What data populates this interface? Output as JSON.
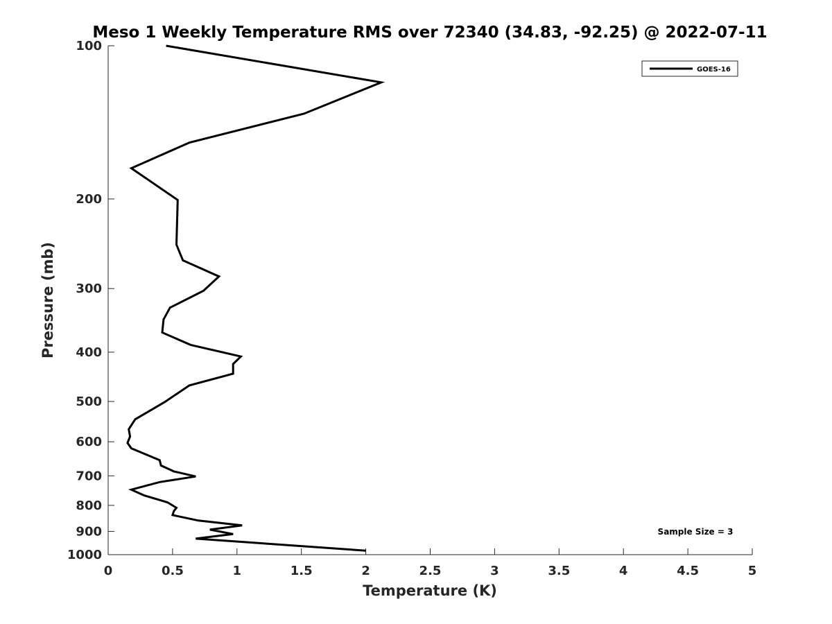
{
  "chart_data": {
    "type": "line",
    "title": "Meso 1 Weekly Temperature RMS over 72340 (34.83, -92.25) @ 2022-07-11",
    "xlabel": "Temperature (K)",
    "ylabel": "Pressure (mb)",
    "xlim": [
      0,
      5
    ],
    "ylim": [
      100,
      1000
    ],
    "yscale": "log",
    "y_reversed": true,
    "x_ticks": [
      "0",
      "0.5",
      "1",
      "1.5",
      "2",
      "2.5",
      "3",
      "3.5",
      "4",
      "4.5",
      "5"
    ],
    "y_ticks": [
      "100",
      "200",
      "300",
      "400",
      "500",
      "600",
      "700",
      "800",
      "900",
      "1000"
    ],
    "grid": false,
    "legend": {
      "position": "top-right",
      "entries": [
        "GOES-16"
      ]
    },
    "annotation": "Sample Size = 3",
    "series": [
      {
        "name": "GOES-16",
        "color": "#000000",
        "points": [
          [
            0.45,
            100
          ],
          [
            2.12,
            118
          ],
          [
            1.52,
            136
          ],
          [
            0.63,
            155
          ],
          [
            0.18,
            174
          ],
          [
            0.54,
            201
          ],
          [
            0.53,
            246
          ],
          [
            0.58,
            264
          ],
          [
            0.86,
            284
          ],
          [
            0.74,
            303
          ],
          [
            0.48,
            327
          ],
          [
            0.43,
            345
          ],
          [
            0.42,
            366
          ],
          [
            0.64,
            387
          ],
          [
            1.03,
            408
          ],
          [
            0.97,
            422
          ],
          [
            0.97,
            441
          ],
          [
            0.63,
            465
          ],
          [
            0.44,
            501
          ],
          [
            0.21,
            542
          ],
          [
            0.16,
            567
          ],
          [
            0.17,
            586
          ],
          [
            0.15,
            603
          ],
          [
            0.18,
            618
          ],
          [
            0.4,
            652
          ],
          [
            0.41,
            668
          ],
          [
            0.51,
            686
          ],
          [
            0.68,
            702
          ],
          [
            0.4,
            720
          ],
          [
            0.18,
            745
          ],
          [
            0.28,
            765
          ],
          [
            0.46,
            789
          ],
          [
            0.53,
            809
          ],
          [
            0.51,
            821
          ],
          [
            0.5,
            836
          ],
          [
            0.7,
            857
          ],
          [
            1.04,
            876
          ],
          [
            0.79,
            893
          ],
          [
            0.97,
            911
          ],
          [
            0.68,
            930
          ],
          [
            2.0,
            982
          ]
        ]
      }
    ]
  }
}
